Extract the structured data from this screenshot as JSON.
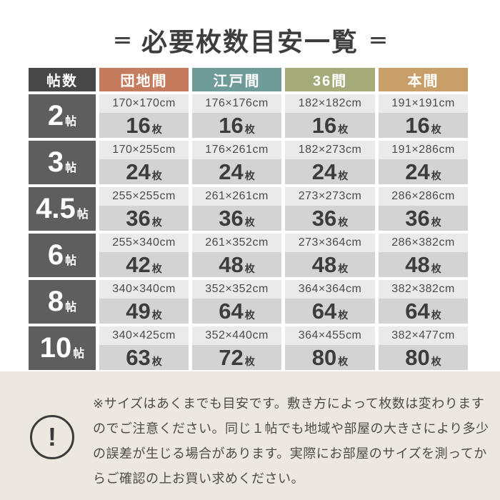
{
  "title": {
    "decor_left": "＝",
    "text": "必要枚数目安一覧",
    "decor_right": "＝"
  },
  "colors": {
    "header_dark": "#474747",
    "row_label_gray": "#5e5e5e",
    "danchima_terracotta": "#c57b5d",
    "edoma_teal": "#6f9b99",
    "sanrokuma_olive": "#a4ab78",
    "honma_tan": "#c89f68",
    "dim_cell_bg": "#eaeaea",
    "count_cell_bg": "#d3d3d3",
    "note_bg": "#ece7df",
    "text_dark": "#3d3d3d"
  },
  "table": {
    "unit_label": "帖",
    "count_unit": "枚",
    "headers": [
      {
        "label": "帖数",
        "color": "#474747"
      },
      {
        "label": "団地間",
        "color": "#c57b5d"
      },
      {
        "label": "江戸間",
        "color": "#6f9b99"
      },
      {
        "label": "36間",
        "color": "#a4ab78"
      },
      {
        "label": "本間",
        "color": "#c89f68"
      }
    ],
    "rows": [
      {
        "label": "2",
        "cells": [
          {
            "dim": "170×170cm",
            "count": "16"
          },
          {
            "dim": "176×176cm",
            "count": "16"
          },
          {
            "dim": "182×182cm",
            "count": "16"
          },
          {
            "dim": "191×191cm",
            "count": "16"
          }
        ]
      },
      {
        "label": "3",
        "cells": [
          {
            "dim": "170×255cm",
            "count": "24"
          },
          {
            "dim": "176×261cm",
            "count": "24"
          },
          {
            "dim": "182×273cm",
            "count": "24"
          },
          {
            "dim": "191×286cm",
            "count": "24"
          }
        ]
      },
      {
        "label": "4.5",
        "cells": [
          {
            "dim": "255×255cm",
            "count": "36"
          },
          {
            "dim": "261×261cm",
            "count": "36"
          },
          {
            "dim": "273×273cm",
            "count": "36"
          },
          {
            "dim": "286×286cm",
            "count": "36"
          }
        ]
      },
      {
        "label": "6",
        "cells": [
          {
            "dim": "255×340cm",
            "count": "42"
          },
          {
            "dim": "261×352cm",
            "count": "48"
          },
          {
            "dim": "273×364cm",
            "count": "48"
          },
          {
            "dim": "286×382cm",
            "count": "48"
          }
        ]
      },
      {
        "label": "8",
        "cells": [
          {
            "dim": "340×340cm",
            "count": "49"
          },
          {
            "dim": "352×352cm",
            "count": "64"
          },
          {
            "dim": "364×364cm",
            "count": "64"
          },
          {
            "dim": "382×382cm",
            "count": "64"
          }
        ]
      },
      {
        "label": "10",
        "cells": [
          {
            "dim": "340×425cm",
            "count": "63"
          },
          {
            "dim": "352×440cm",
            "count": "72"
          },
          {
            "dim": "364×455cm",
            "count": "80"
          },
          {
            "dim": "382×477cm",
            "count": "80"
          }
        ]
      }
    ]
  },
  "note": {
    "icon": "!",
    "lines": [
      "※サイズはあくまでも目安です。敷き方によって枚数は変わります",
      "のでご注意ください。同じ１帖でも地域や部屋の大きさにより多少",
      "の誤差が生じる場合があります。実際にお部屋のサイズを測ってか",
      "らご確認の上お買い求めください。"
    ]
  },
  "chart_data": {
    "type": "table",
    "title": "必要枚数目安一覧",
    "columns": [
      "帖数",
      "団地間",
      "江戸間",
      "36間",
      "本間"
    ],
    "rows": [
      [
        "2帖",
        "170×170cm / 16枚",
        "176×176cm / 16枚",
        "182×182cm / 16枚",
        "191×191cm / 16枚"
      ],
      [
        "3帖",
        "170×255cm / 24枚",
        "176×261cm / 24枚",
        "182×273cm / 24枚",
        "191×286cm / 24枚"
      ],
      [
        "4.5帖",
        "255×255cm / 36枚",
        "261×261cm / 36枚",
        "273×273cm / 36枚",
        "286×286cm / 36枚"
      ],
      [
        "6帖",
        "255×340cm / 42枚",
        "261×352cm / 48枚",
        "273×364cm / 48枚",
        "286×382cm / 48枚"
      ],
      [
        "8帖",
        "340×340cm / 49枚",
        "352×352cm / 64枚",
        "364×364cm / 64枚",
        "382×382cm / 64枚"
      ],
      [
        "10帖",
        "340×425cm / 63枚",
        "352×440cm / 72枚",
        "364×455cm / 80枚",
        "382×477cm / 80枚"
      ]
    ]
  }
}
